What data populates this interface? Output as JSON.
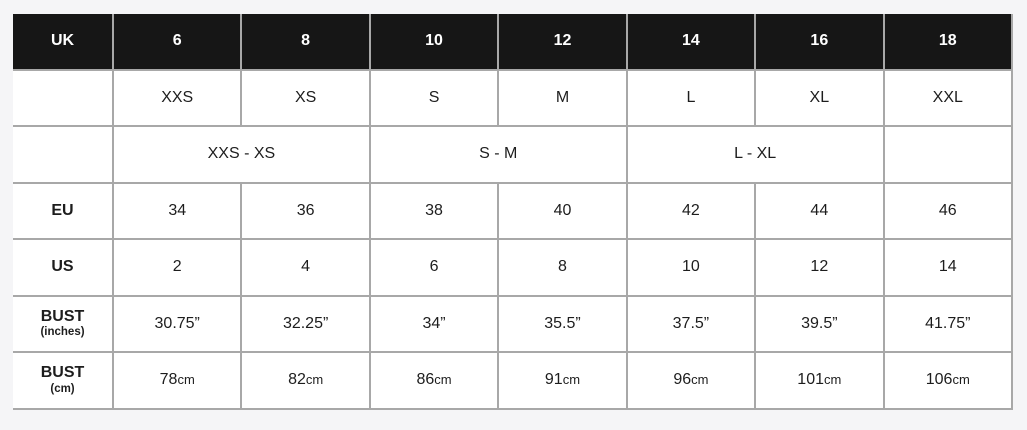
{
  "page": {
    "background_color": "#f5f5f7"
  },
  "size_chart": {
    "colors": {
      "header_bg": "#161616",
      "header_text": "#ffffff",
      "cell_bg": "#ffffff",
      "cell_text": "#1d1d1d",
      "border": "#a8a8a8"
    },
    "uk_row": {
      "label": "UK",
      "values": [
        "6",
        "8",
        "10",
        "12",
        "14",
        "16",
        "18"
      ]
    },
    "intl_size_row": {
      "label": "",
      "values": [
        "XXS",
        "XS",
        "S",
        "M",
        "L",
        "XL",
        "XXL"
      ]
    },
    "intl_range_row": {
      "label": "",
      "groups": [
        {
          "text": "XXS - XS",
          "span": 2
        },
        {
          "text": "S - M",
          "span": 2
        },
        {
          "text": "L - XL",
          "span": 2
        },
        {
          "text": "",
          "span": 1
        }
      ]
    },
    "eu_row": {
      "label": "EU",
      "values": [
        "34",
        "36",
        "38",
        "40",
        "42",
        "44",
        "46"
      ]
    },
    "us_row": {
      "label": "US",
      "values": [
        "2",
        "4",
        "6",
        "8",
        "10",
        "12",
        "14"
      ]
    },
    "bust_inches_row": {
      "label": "BUST",
      "sublabel": "(inches)",
      "values": [
        "30.75”",
        "32.25”",
        "34”",
        "35.5”",
        "37.5”",
        "39.5”",
        "41.75”"
      ]
    },
    "bust_cm_row": {
      "label": "BUST",
      "sublabel": "(cm)",
      "values": [
        {
          "num": "78",
          "unit": "cm"
        },
        {
          "num": "82",
          "unit": "cm"
        },
        {
          "num": "86",
          "unit": "cm"
        },
        {
          "num": "91",
          "unit": "cm"
        },
        {
          "num": "96",
          "unit": "cm"
        },
        {
          "num": "101",
          "unit": "cm"
        },
        {
          "num": "106",
          "unit": "cm"
        }
      ]
    }
  }
}
